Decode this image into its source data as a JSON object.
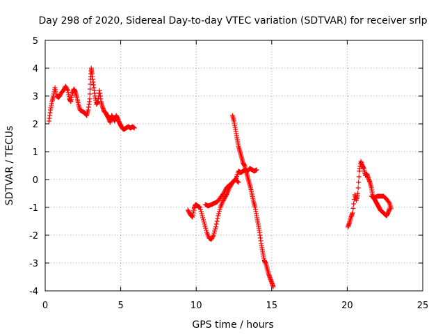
{
  "chart_data": {
    "type": "scatter",
    "title": "Day 298 of 2020, Sidereal Day-to-day VTEC variation (SDTVAR) for receiver srlp",
    "xlabel": "GPS time / hours",
    "ylabel": "SDTVAR / TECUs",
    "xlim": [
      0,
      25
    ],
    "ylim": [
      -4,
      5
    ],
    "x_ticks": [
      0,
      5,
      10,
      15,
      20,
      25
    ],
    "y_ticks": [
      -4,
      -3,
      -2,
      -1,
      0,
      1,
      2,
      3,
      4,
      5
    ],
    "x_tick_labels": [
      "0",
      "5",
      "10",
      "15",
      "20",
      "25"
    ],
    "y_tick_labels": [
      "-4",
      "-3",
      "-2",
      "-1",
      "0",
      "1",
      "2",
      "3",
      "4",
      "5"
    ],
    "grid": true,
    "marker": "+",
    "series": [
      {
        "name": "SDTVAR",
        "color": "#ff0000",
        "segments": [
          [
            [
              0.25,
              2.1
            ],
            [
              0.35,
              2.5
            ],
            [
              0.45,
              2.8
            ],
            [
              0.55,
              3.0
            ],
            [
              0.65,
              3.3
            ],
            [
              0.75,
              3.0
            ],
            [
              0.9,
              2.95
            ],
            [
              1.05,
              3.1
            ],
            [
              1.2,
              3.2
            ],
            [
              1.35,
              3.35
            ],
            [
              1.5,
              3.2
            ],
            [
              1.6,
              2.9
            ],
            [
              1.7,
              2.8
            ],
            [
              1.8,
              3.1
            ],
            [
              1.9,
              3.25
            ],
            [
              2.0,
              3.15
            ],
            [
              2.1,
              2.95
            ],
            [
              2.2,
              2.7
            ],
            [
              2.3,
              2.5
            ],
            [
              2.45,
              2.45
            ],
            [
              2.6,
              2.4
            ],
            [
              2.75,
              2.3
            ],
            [
              2.85,
              2.5
            ],
            [
              2.95,
              2.9
            ],
            [
              3.0,
              3.6
            ],
            [
              3.05,
              4.0
            ],
            [
              3.1,
              3.8
            ],
            [
              3.2,
              3.4
            ],
            [
              3.3,
              3.0
            ],
            [
              3.4,
              2.7
            ],
            [
              3.5,
              2.8
            ],
            [
              3.6,
              3.2
            ],
            [
              3.7,
              2.8
            ],
            [
              3.8,
              2.6
            ],
            [
              3.9,
              2.45
            ],
            [
              4.0,
              2.4
            ],
            [
              4.1,
              2.3
            ],
            [
              4.2,
              2.2
            ],
            [
              4.3,
              2.05
            ],
            [
              4.4,
              2.3
            ],
            [
              4.5,
              2.2
            ],
            [
              4.6,
              2.1
            ],
            [
              4.7,
              2.3
            ],
            [
              4.8,
              2.2
            ],
            [
              4.9,
              2.05
            ],
            [
              5.0,
              1.95
            ],
            [
              5.1,
              1.85
            ],
            [
              5.2,
              1.8
            ],
            [
              5.35,
              1.85
            ],
            [
              5.5,
              1.9
            ],
            [
              5.65,
              1.85
            ],
            [
              5.8,
              1.9
            ],
            [
              5.9,
              1.85
            ]
          ],
          [
            [
              9.45,
              -1.1
            ],
            [
              9.6,
              -1.25
            ],
            [
              9.75,
              -1.35
            ],
            [
              9.85,
              -1.05
            ],
            [
              9.95,
              -0.9
            ],
            [
              10.1,
              -0.95
            ],
            [
              10.25,
              -1.0
            ],
            [
              10.4,
              -1.3
            ],
            [
              10.55,
              -1.6
            ],
            [
              10.7,
              -1.9
            ],
            [
              10.85,
              -2.1
            ],
            [
              11.0,
              -2.15
            ],
            [
              11.15,
              -2.0
            ],
            [
              11.3,
              -1.7
            ],
            [
              11.45,
              -1.3
            ],
            [
              11.6,
              -1.0
            ],
            [
              11.75,
              -0.8
            ],
            [
              11.9,
              -0.65
            ],
            [
              12.05,
              -0.5
            ],
            [
              12.2,
              -0.3
            ],
            [
              12.35,
              -0.15
            ],
            [
              12.5,
              -0.05
            ],
            [
              12.65,
              0.05
            ],
            [
              12.8,
              0.3
            ],
            [
              12.95,
              0.25
            ],
            [
              13.1,
              0.3
            ],
            [
              13.25,
              0.35
            ],
            [
              13.4,
              0.3
            ],
            [
              13.55,
              0.4
            ],
            [
              13.7,
              0.35
            ],
            [
              13.85,
              0.3
            ],
            [
              14.0,
              0.35
            ]
          ],
          [
            [
              10.6,
              -0.9
            ],
            [
              10.8,
              -0.95
            ],
            [
              11.0,
              -0.9
            ],
            [
              11.2,
              -0.85
            ],
            [
              11.4,
              -0.8
            ],
            [
              11.6,
              -0.65
            ],
            [
              11.8,
              -0.5
            ],
            [
              12.0,
              -0.3
            ],
            [
              12.2,
              -0.2
            ],
            [
              12.4,
              -0.1
            ],
            [
              12.6,
              0.0
            ],
            [
              12.8,
              -0.1
            ]
          ],
          [
            [
              12.4,
              2.3
            ],
            [
              12.5,
              2.1
            ],
            [
              12.6,
              1.8
            ],
            [
              12.7,
              1.5
            ],
            [
              12.8,
              1.2
            ],
            [
              12.9,
              1.0
            ],
            [
              13.0,
              0.8
            ],
            [
              13.1,
              0.6
            ],
            [
              13.2,
              0.5
            ],
            [
              13.3,
              0.3
            ],
            [
              13.4,
              0.1
            ],
            [
              13.5,
              -0.1
            ],
            [
              13.6,
              -0.3
            ],
            [
              13.7,
              -0.55
            ],
            [
              13.8,
              -0.8
            ],
            [
              13.9,
              -1.0
            ],
            [
              14.0,
              -1.3
            ],
            [
              14.1,
              -1.6
            ],
            [
              14.2,
              -1.9
            ],
            [
              14.3,
              -2.3
            ],
            [
              14.4,
              -2.6
            ],
            [
              14.5,
              -2.9
            ],
            [
              14.6,
              -3.0
            ],
            [
              14.7,
              -3.2
            ],
            [
              14.8,
              -3.4
            ],
            [
              14.9,
              -3.55
            ],
            [
              15.0,
              -3.7
            ],
            [
              15.1,
              -3.85
            ]
          ],
          [
            [
              20.05,
              -1.7
            ],
            [
              20.15,
              -1.55
            ],
            [
              20.25,
              -1.35
            ],
            [
              20.35,
              -1.2
            ],
            [
              20.5,
              -0.55
            ],
            [
              20.6,
              -0.75
            ],
            [
              20.7,
              -0.5
            ],
            [
              20.8,
              0.3
            ],
            [
              20.9,
              0.65
            ],
            [
              21.0,
              0.5
            ],
            [
              21.1,
              0.4
            ],
            [
              21.2,
              0.15
            ],
            [
              21.3,
              0.2
            ],
            [
              21.4,
              0.05
            ],
            [
              21.5,
              -0.1
            ],
            [
              21.6,
              -0.3
            ],
            [
              21.7,
              -0.6
            ],
            [
              21.8,
              -0.7
            ],
            [
              21.9,
              -0.8
            ],
            [
              22.0,
              -0.9
            ],
            [
              22.1,
              -1.0
            ],
            [
              22.2,
              -1.1
            ],
            [
              22.3,
              -1.15
            ],
            [
              22.4,
              -1.2
            ],
            [
              22.5,
              -1.25
            ],
            [
              22.6,
              -1.3
            ],
            [
              22.7,
              -1.2
            ],
            [
              22.8,
              -1.05
            ]
          ],
          [
            [
              21.6,
              -0.6
            ],
            [
              21.8,
              -0.65
            ],
            [
              22.0,
              -0.6
            ],
            [
              22.2,
              -0.6
            ],
            [
              22.4,
              -0.6
            ],
            [
              22.6,
              -0.7
            ],
            [
              22.8,
              -0.85
            ],
            [
              22.9,
              -1.05
            ]
          ]
        ]
      }
    ]
  }
}
